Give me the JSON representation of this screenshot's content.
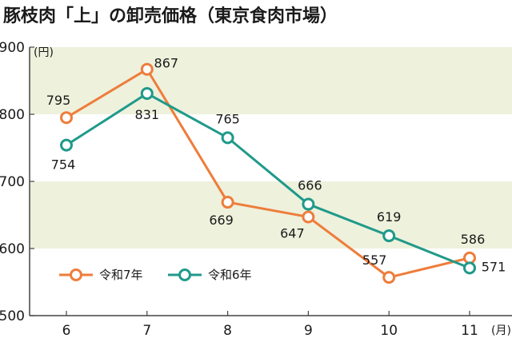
{
  "chart_data": {
    "type": "line",
    "title": "豚枝肉「上」の卸売価格（東京食肉市場）",
    "y_unit": "(円)",
    "x_unit": "(月)",
    "categories": [
      "6",
      "7",
      "8",
      "9",
      "10",
      "11"
    ],
    "ylim": [
      500,
      900
    ],
    "yticks": [
      500,
      600,
      700,
      800,
      900
    ],
    "grid": true,
    "legend_position": "bottom-left",
    "series": [
      {
        "name": "令和7年",
        "color": "#ee7d3b",
        "values": [
          795,
          867,
          669,
          647,
          557,
          586
        ],
        "labels": [
          "795",
          "867",
          "669",
          "647",
          "557",
          "586"
        ]
      },
      {
        "name": "令和6年",
        "color": "#1f9a8a",
        "values": [
          754,
          831,
          765,
          666,
          619,
          571
        ],
        "labels": [
          "754",
          "831",
          "765",
          "666",
          "619",
          "571"
        ]
      }
    ]
  }
}
